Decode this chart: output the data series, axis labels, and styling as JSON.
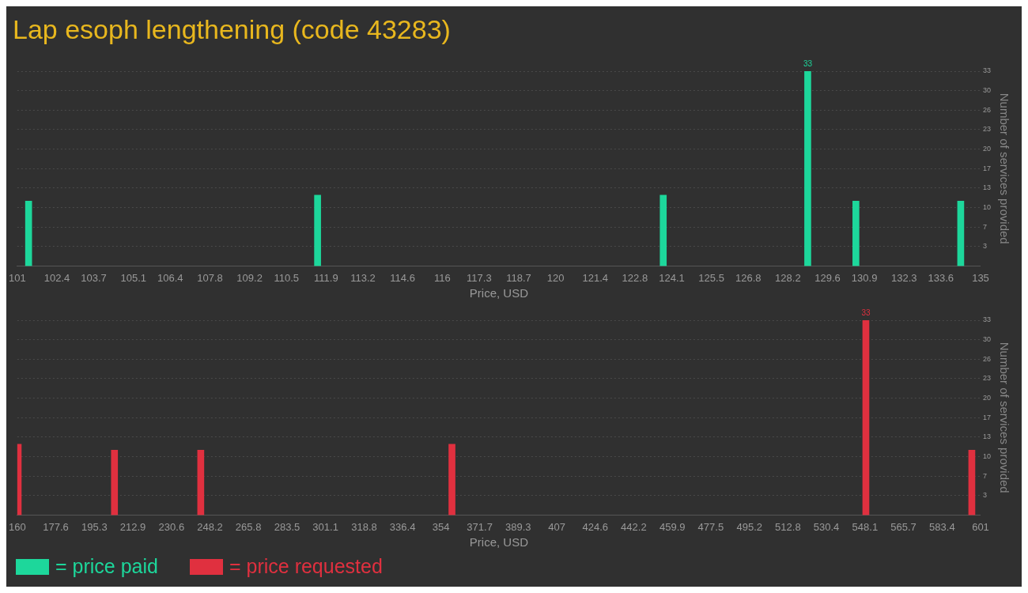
{
  "chart_data": [
    {
      "type": "bar",
      "title": "Lap esoph lengthening (code 43283)",
      "xlabel": "Price, USD",
      "ylabel": "Number of services provided",
      "x": [
        101.4,
        111.6,
        123.8,
        128.9,
        130.6,
        134.3
      ],
      "series": [
        {
          "name": "= price paid",
          "color": "#1dd79b",
          "values": [
            11,
            12,
            12,
            33,
            11,
            11
          ],
          "value_labels": [
            null,
            null,
            null,
            "33",
            null,
            null
          ]
        }
      ],
      "xlim": [
        101,
        135
      ],
      "xticks": [
        101,
        102.4,
        103.7,
        105.1,
        106.4,
        107.8,
        109.2,
        110.5,
        111.9,
        113.2,
        114.6,
        116,
        117.3,
        118.7,
        120,
        121.4,
        122.8,
        124.1,
        125.5,
        126.8,
        128.2,
        129.6,
        130.9,
        132.3,
        133.6,
        135
      ],
      "ylim": [
        0,
        33
      ],
      "yticks": [
        {
          "value": 3.3,
          "label": "3"
        },
        {
          "value": 6.6,
          "label": "7"
        },
        {
          "value": 9.9,
          "label": "10"
        },
        {
          "value": 13.2,
          "label": "13"
        },
        {
          "value": 16.5,
          "label": "17"
        },
        {
          "value": 19.8,
          "label": "20"
        },
        {
          "value": 23.1,
          "label": "23"
        },
        {
          "value": 26.4,
          "label": "26"
        },
        {
          "value": 29.7,
          "label": "30"
        },
        {
          "value": 33,
          "label": "33"
        }
      ],
      "grid": "y",
      "legend": "bottom left"
    },
    {
      "type": "bar",
      "xlabel": "Price, USD",
      "ylabel": "Number of services provided",
      "x": [
        160.4,
        204.5,
        244,
        359,
        548.5,
        597
      ],
      "series": [
        {
          "name": "= price requested",
          "color": "#e0303f",
          "values": [
            12,
            11,
            11,
            12,
            33,
            11
          ],
          "value_labels": [
            null,
            null,
            null,
            null,
            "33",
            null
          ]
        }
      ],
      "xlim": [
        160,
        601
      ],
      "xticks": [
        160,
        177.6,
        195.3,
        212.9,
        230.6,
        248.2,
        265.8,
        283.5,
        301.1,
        318.8,
        336.4,
        354,
        371.7,
        389.3,
        407,
        424.6,
        442.2,
        459.9,
        477.5,
        495.2,
        512.8,
        530.4,
        548.1,
        565.7,
        583.4,
        601
      ],
      "ylim": [
        0,
        33
      ],
      "yticks": [
        {
          "value": 3.3,
          "label": "3"
        },
        {
          "value": 6.6,
          "label": "7"
        },
        {
          "value": 9.9,
          "label": "10"
        },
        {
          "value": 13.2,
          "label": "13"
        },
        {
          "value": 16.5,
          "label": "17"
        },
        {
          "value": 19.8,
          "label": "20"
        },
        {
          "value": 23.1,
          "label": "23"
        },
        {
          "value": 26.4,
          "label": "26"
        },
        {
          "value": 29.7,
          "label": "30"
        },
        {
          "value": 33,
          "label": "33"
        }
      ],
      "grid": "y",
      "legend": "bottom left"
    }
  ]
}
